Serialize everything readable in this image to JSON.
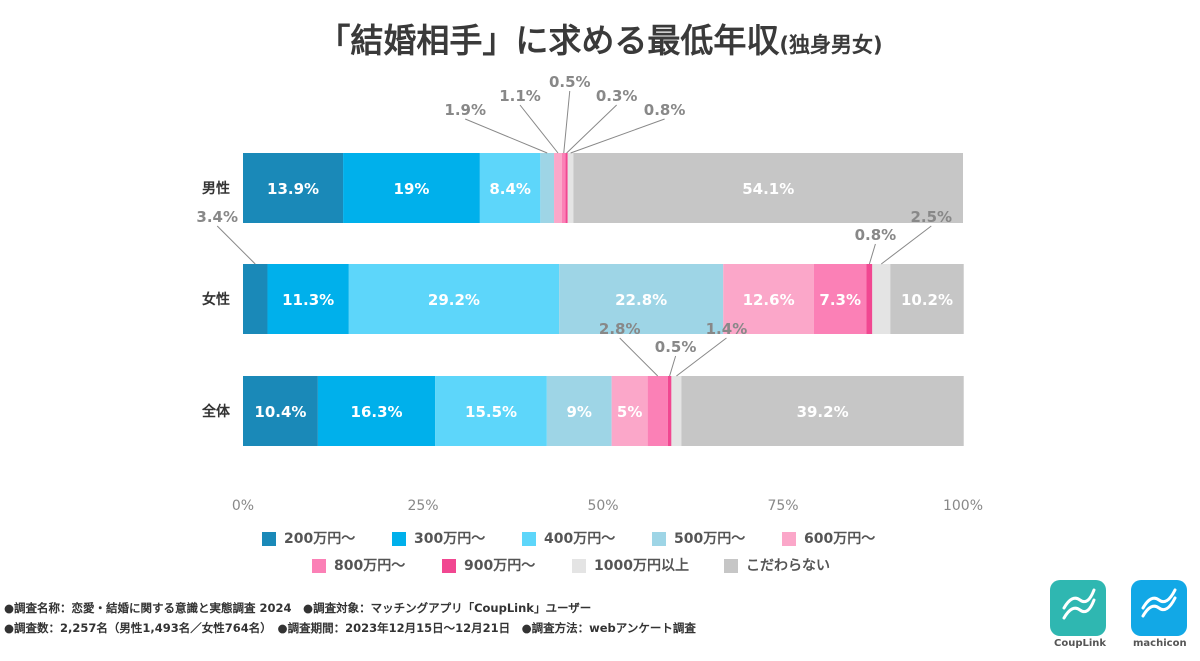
{
  "title": "「結婚相手」に求める最低年収",
  "subtitle": "(独身男女)",
  "chart_data": {
    "type": "bar",
    "orientation": "horizontal",
    "stacked": true,
    "percent": true,
    "categories": [
      "男性",
      "女性",
      "全体"
    ],
    "series": [
      {
        "name": "200万円～",
        "color": "#1a89b8",
        "values": [
          13.9,
          3.4,
          10.4
        ]
      },
      {
        "name": "300万円～",
        "color": "#00b0eb",
        "values": [
          19,
          11.3,
          16.3
        ]
      },
      {
        "name": "400万円～",
        "color": "#5dd6fa",
        "values": [
          8.4,
          29.2,
          15.5
        ]
      },
      {
        "name": "500万円～",
        "color": "#9ed5e6",
        "values": [
          1.9,
          22.8,
          9
        ]
      },
      {
        "name": "600万円～",
        "color": "#fba7c9",
        "values": [
          1.1,
          12.6,
          5
        ]
      },
      {
        "name": "800万円～",
        "color": "#fb80b6",
        "values": [
          0.5,
          7.3,
          2.8
        ]
      },
      {
        "name": "900万円～",
        "color": "#f14791",
        "values": [
          0.3,
          0.8,
          0.5
        ]
      },
      {
        "name": "1000万円以上",
        "color": "#e4e4e4",
        "values": [
          0.8,
          2.5,
          1.4
        ]
      },
      {
        "name": "こだわらない",
        "color": "#c6c6c6",
        "values": [
          54.1,
          10.2,
          39.2
        ]
      }
    ],
    "value_labels": [
      [
        "13.9%",
        "19%",
        "8.4%",
        "1.9%",
        "1.1%",
        "0.5%",
        "0.3%",
        "0.8%",
        "54.1%"
      ],
      [
        "3.4%",
        "11.3%",
        "29.2%",
        "22.8%",
        "12.6%",
        "7.3%",
        "0.8%",
        "2.5%",
        "10.2%"
      ],
      [
        "10.4%",
        "16.3%",
        "15.5%",
        "9%",
        "5%",
        "2.8%",
        "0.5%",
        "1.4%",
        "39.2%"
      ]
    ],
    "xlim": [
      0,
      100
    ],
    "x_ticks": [
      "0%",
      "25%",
      "50%",
      "75%",
      "100%"
    ],
    "legend_position": "bottom",
    "grid": false
  },
  "footer": {
    "line1": "●調査名称：恋愛・結婚に関する意識と実態調査 2024　●調査対象：マッチングアプリ「CoupLink」ユーザー",
    "line2": "●調査数：2,257名（男性1,493名／女性764名）　●調査期間：2023年12月15日～12月21日　●調査方法：webアンケート調査"
  },
  "logos": {
    "couplink": {
      "label": "CoupLink",
      "color": "#2fb7b1",
      "icon": "couplink-logo-icon"
    },
    "machicon": {
      "label": "machicon",
      "color": "#12a8e6",
      "icon": "machicon-logo-icon"
    }
  }
}
